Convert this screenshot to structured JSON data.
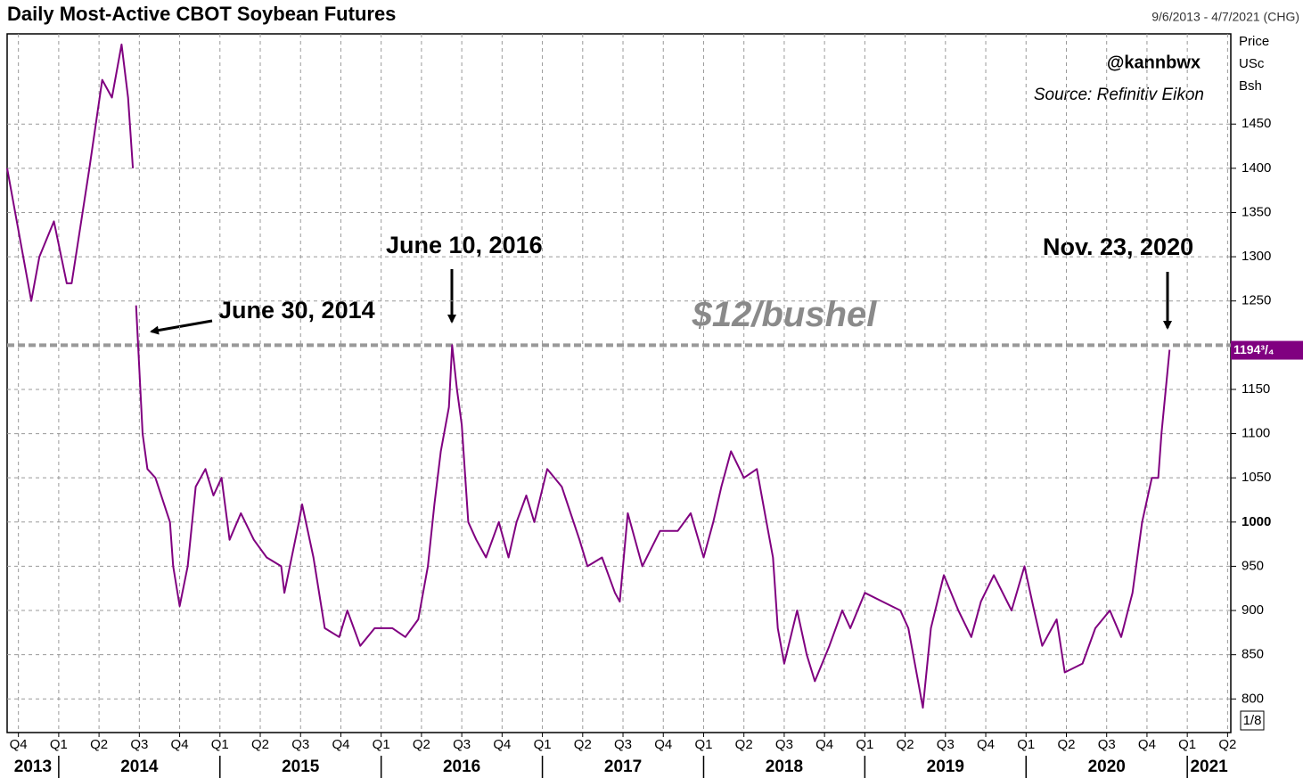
{
  "chart_data": {
    "type": "line",
    "title": "Daily Most-Active CBOT Soybean Futures",
    "date_range": "9/6/2013 - 4/7/2021 (CHG)",
    "credit": "@kannbwx",
    "source": "Source: Refinitiv Eikon",
    "ylabel_lines": [
      "Price",
      "USc",
      "Bsh"
    ],
    "price_unit_note": "1/8",
    "last_value_label": "1194³/₄",
    "annotations": [
      "June 30, 2014",
      "June 10, 2016",
      "Nov. 23, 2020"
    ],
    "reference_line": {
      "value": 1200,
      "label": "$12/bushel"
    },
    "xlim": [
      2013.68,
      2021.27
    ],
    "ylim": [
      762,
      1552
    ],
    "yticks": [
      800,
      850,
      900,
      950,
      1000,
      1050,
      1100,
      1150,
      1250,
      1300,
      1350,
      1400,
      1450
    ],
    "xticks": [
      {
        "value": 2013.75,
        "label": "Q4"
      },
      {
        "value": 2014.0,
        "label": "Q1"
      },
      {
        "value": 2014.25,
        "label": "Q2"
      },
      {
        "value": 2014.5,
        "label": "Q3"
      },
      {
        "value": 2014.75,
        "label": "Q4"
      },
      {
        "value": 2015.0,
        "label": "Q1"
      },
      {
        "value": 2015.25,
        "label": "Q2"
      },
      {
        "value": 2015.5,
        "label": "Q3"
      },
      {
        "value": 2015.75,
        "label": "Q4"
      },
      {
        "value": 2016.0,
        "label": "Q1"
      },
      {
        "value": 2016.25,
        "label": "Q2"
      },
      {
        "value": 2016.5,
        "label": "Q3"
      },
      {
        "value": 2016.75,
        "label": "Q4"
      },
      {
        "value": 2017.0,
        "label": "Q1"
      },
      {
        "value": 2017.25,
        "label": "Q2"
      },
      {
        "value": 2017.5,
        "label": "Q3"
      },
      {
        "value": 2017.75,
        "label": "Q4"
      },
      {
        "value": 2018.0,
        "label": "Q1"
      },
      {
        "value": 2018.25,
        "label": "Q2"
      },
      {
        "value": 2018.5,
        "label": "Q3"
      },
      {
        "value": 2018.75,
        "label": "Q4"
      },
      {
        "value": 2019.0,
        "label": "Q1"
      },
      {
        "value": 2019.25,
        "label": "Q2"
      },
      {
        "value": 2019.5,
        "label": "Q3"
      },
      {
        "value": 2019.75,
        "label": "Q4"
      },
      {
        "value": 2020.0,
        "label": "Q1"
      },
      {
        "value": 2020.25,
        "label": "Q2"
      },
      {
        "value": 2020.5,
        "label": "Q3"
      },
      {
        "value": 2020.75,
        "label": "Q4"
      },
      {
        "value": 2021.0,
        "label": "Q1"
      },
      {
        "value": 2021.25,
        "label": "Q2"
      }
    ],
    "x_year_labels": [
      "2013",
      "2014",
      "2015",
      "2016",
      "2017",
      "2018",
      "2019",
      "2020",
      "2021"
    ],
    "grid": true,
    "series": [
      {
        "name": "Soybean futures",
        "color": "#800080",
        "x": [
          2013.68,
          2013.83,
          2013.88,
          2013.97,
          2014.05,
          2014.08,
          2014.19,
          2014.27,
          2014.33,
          2014.39,
          2014.43,
          2014.46,
          2014.47,
          2014.48,
          2014.52,
          2014.55,
          2014.6,
          2014.69,
          2014.71,
          2014.75,
          2014.8,
          2014.85,
          2014.91,
          2014.96,
          2015.01,
          2015.06,
          2015.13,
          2015.21,
          2015.29,
          2015.38,
          2015.4,
          2015.49,
          2015.51,
          2015.58,
          2015.65,
          2015.74,
          2015.79,
          2015.87,
          2015.96,
          2016.07,
          2016.15,
          2016.23,
          2016.29,
          2016.33,
          2016.37,
          2016.42,
          2016.44,
          2016.47,
          2016.5,
          2016.54,
          2016.59,
          2016.65,
          2016.73,
          2016.79,
          2016.84,
          2016.9,
          2016.95,
          2017.03,
          2017.12,
          2017.23,
          2017.28,
          2017.37,
          2017.45,
          2017.48,
          2017.53,
          2017.62,
          2017.73,
          2017.84,
          2017.92,
          2018.0,
          2018.06,
          2018.11,
          2018.17,
          2018.25,
          2018.33,
          2018.39,
          2018.43,
          2018.46,
          2018.5,
          2018.58,
          2018.64,
          2018.69,
          2018.78,
          2018.86,
          2018.91,
          2019.0,
          2019.11,
          2019.22,
          2019.27,
          2019.33,
          2019.36,
          2019.41,
          2019.49,
          2019.58,
          2019.66,
          2019.72,
          2019.8,
          2019.91,
          2019.99,
          2020.05,
          2020.1,
          2020.19,
          2020.24,
          2020.35,
          2020.43,
          2020.52,
          2020.59,
          2020.66,
          2020.72,
          2020.78,
          2020.82,
          2020.84,
          2020.89
        ],
        "values": [
          1400,
          1250,
          1300,
          1340,
          1270,
          1270,
          1400,
          1500,
          1480,
          1540,
          1480,
          1400,
          null,
          1245,
          1100,
          1060,
          1050,
          1000,
          950,
          905,
          950,
          1040,
          1060,
          1030,
          1050,
          980,
          1010,
          980,
          960,
          950,
          920,
          1000,
          1020,
          960,
          880,
          870,
          900,
          860,
          880,
          880,
          870,
          890,
          950,
          1020,
          1080,
          1130,
          1200,
          1150,
          1110,
          1000,
          980,
          960,
          1000,
          960,
          1000,
          1030,
          1000,
          1060,
          1040,
          980,
          950,
          960,
          920,
          910,
          1010,
          950,
          990,
          990,
          1010,
          960,
          1000,
          1040,
          1080,
          1050,
          1060,
          1000,
          960,
          880,
          840,
          900,
          850,
          820,
          860,
          900,
          880,
          920,
          910,
          900,
          880,
          820,
          790,
          880,
          940,
          900,
          870,
          910,
          940,
          900,
          950,
          900,
          860,
          890,
          830,
          840,
          880,
          900,
          870,
          920,
          1000,
          1050,
          1050,
          1100,
          1194.75
        ]
      }
    ]
  }
}
